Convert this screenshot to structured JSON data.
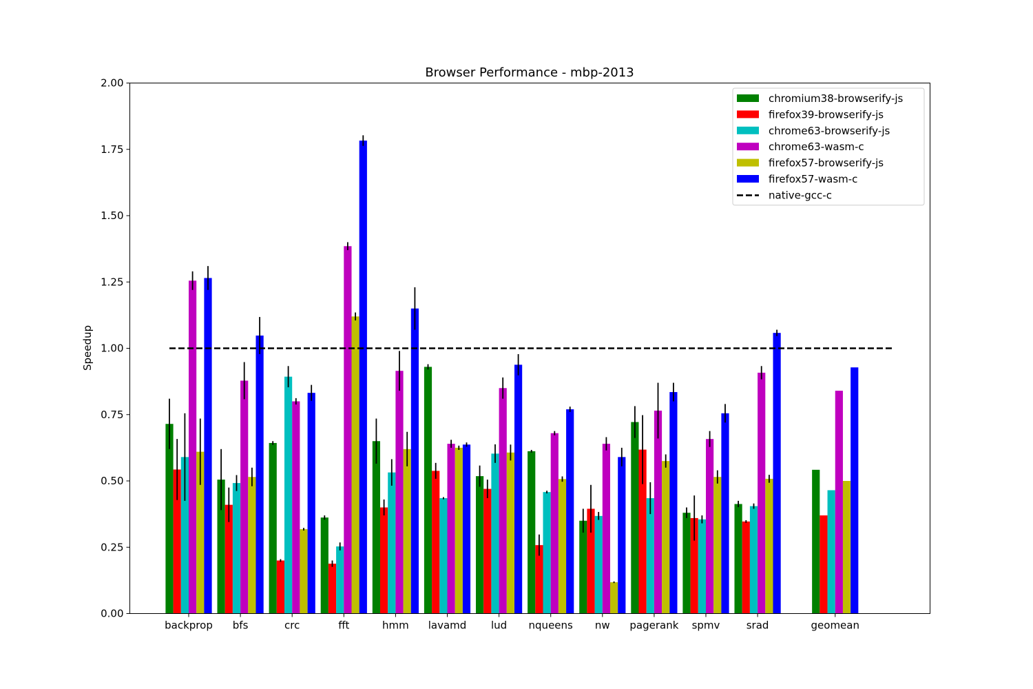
{
  "chart_data": {
    "type": "bar",
    "title": "Browser Performance - mbp-2013",
    "xlabel": "",
    "ylabel": "Speedup",
    "ylim": [
      0,
      2.0
    ],
    "yticks": [
      "0.00",
      "0.25",
      "0.50",
      "0.75",
      "1.00",
      "1.25",
      "1.50",
      "1.75",
      "2.00"
    ],
    "grid": false,
    "legend_position": "top-right",
    "categories": [
      "backprop",
      "bfs",
      "crc",
      "fft",
      "hmm",
      "lavamd",
      "lud",
      "nqueens",
      "nw",
      "pagerank",
      "spmv",
      "srad",
      "geomean"
    ],
    "series": [
      {
        "name": "chromium38-browserify-js",
        "color": "#008000",
        "values": [
          0.715,
          0.505,
          0.643,
          0.362,
          0.65,
          0.93,
          0.518,
          0.612,
          0.35,
          0.722,
          0.38,
          0.413,
          0.542
        ],
        "errors": [
          0.095,
          0.115,
          0.007,
          0.008,
          0.085,
          0.01,
          0.04,
          0.005,
          0.045,
          0.06,
          0.02,
          0.012,
          0
        ]
      },
      {
        "name": "firefox39-browserify-js",
        "color": "#ff0000",
        "values": [
          0.543,
          0.41,
          0.2,
          0.188,
          0.4,
          0.538,
          0.47,
          0.258,
          0.395,
          0.618,
          0.36,
          0.347,
          0.37
        ],
        "errors": [
          0.115,
          0.065,
          0.005,
          0.012,
          0.03,
          0.03,
          0.035,
          0.04,
          0.09,
          0.13,
          0.085,
          0.005,
          0
        ]
      },
      {
        "name": "chrome63-browserify-js",
        "color": "#00bfbf",
        "values": [
          0.59,
          0.492,
          0.893,
          0.253,
          0.532,
          0.435,
          0.603,
          0.458,
          0.368,
          0.435,
          0.355,
          0.405,
          0.465
        ],
        "errors": [
          0.165,
          0.03,
          0.04,
          0.015,
          0.05,
          0.004,
          0.035,
          0.005,
          0.015,
          0.06,
          0.015,
          0.01,
          0
        ]
      },
      {
        "name": "chrome63-wasm-c",
        "color": "#bf00bf",
        "values": [
          1.255,
          0.878,
          0.8,
          1.385,
          0.915,
          0.64,
          0.85,
          0.68,
          0.64,
          0.765,
          0.658,
          0.908,
          0.84
        ],
        "errors": [
          0.035,
          0.07,
          0.012,
          0.015,
          0.075,
          0.015,
          0.04,
          0.008,
          0.025,
          0.105,
          0.03,
          0.025,
          0
        ]
      },
      {
        "name": "firefox57-browserify-js",
        "color": "#bfbf00",
        "values": [
          0.61,
          0.515,
          0.318,
          1.12,
          0.62,
          0.625,
          0.607,
          0.507,
          0.118,
          0.575,
          0.515,
          0.508,
          0.5
        ],
        "errors": [
          0.125,
          0.035,
          0.005,
          0.015,
          0.065,
          0.008,
          0.03,
          0.01,
          0.003,
          0.025,
          0.025,
          0.015,
          0
        ]
      },
      {
        "name": "firefox57-wasm-c",
        "color": "#0000ff",
        "values": [
          1.265,
          1.048,
          0.832,
          1.783,
          1.15,
          0.637,
          0.938,
          0.77,
          0.59,
          0.835,
          0.755,
          1.058,
          0.928
        ],
        "errors": [
          0.045,
          0.07,
          0.03,
          0.02,
          0.08,
          0.008,
          0.04,
          0.01,
          0.035,
          0.035,
          0.035,
          0.012,
          0
        ]
      }
    ],
    "reference_line": {
      "name": "native-gcc-c",
      "value": 1.0,
      "color": "#000000",
      "style": "dashed"
    }
  }
}
